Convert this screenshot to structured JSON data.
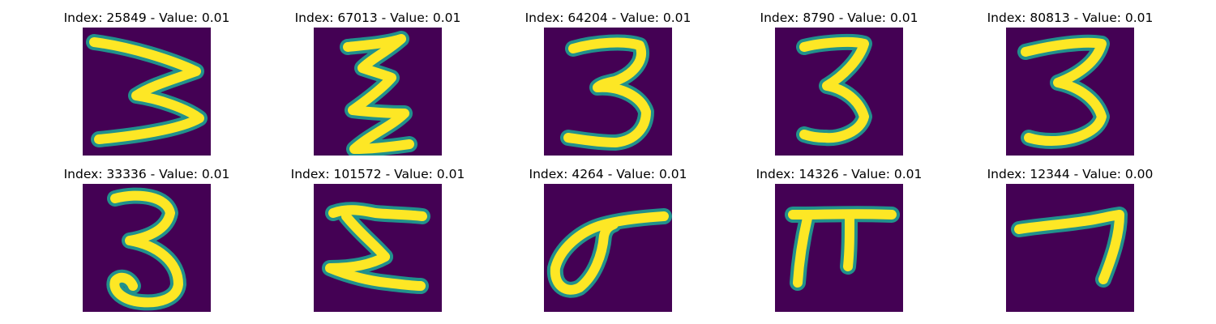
{
  "panels": [
    {
      "title": "Index: 25849 - Value: 0.01",
      "glyph": "wide-3"
    },
    {
      "title": "Index: 67013 - Value: 0.01",
      "glyph": "narrow-zigzag-3"
    },
    {
      "title": "Index: 64204 - Value: 0.01",
      "glyph": "open-3"
    },
    {
      "title": "Index: 8790 - Value: 0.01",
      "glyph": "bold-3"
    },
    {
      "title": "Index: 80813 - Value: 0.01",
      "glyph": "bold-3-b"
    },
    {
      "title": "Index: 33336 - Value: 0.01",
      "glyph": "curly-3"
    },
    {
      "title": "Index: 101572 - Value: 0.01",
      "glyph": "block-5"
    },
    {
      "title": "Index: 4264 - Value: 0.01",
      "glyph": "loop-stroke"
    },
    {
      "title": "Index: 14326 - Value: 0.01",
      "glyph": "pi"
    },
    {
      "title": "Index: 12344 - Value: 0.00",
      "glyph": "seven"
    }
  ],
  "colors": {
    "background": "#440154",
    "stroke": "#fde725",
    "edge": "#21918c"
  }
}
